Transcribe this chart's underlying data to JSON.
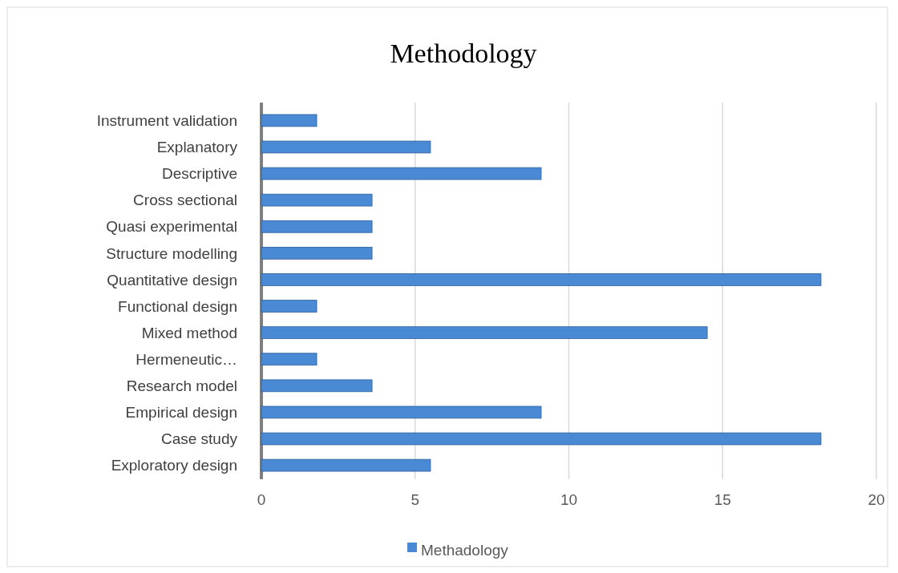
{
  "chart_data": {
    "type": "bar",
    "orientation": "horizontal",
    "title": "Methodology",
    "categories": [
      "Instrument validation",
      "Explanatory",
      "Descriptive",
      "Cross sectional",
      "Quasi experimental",
      "Structure modelling",
      "Quantitative design",
      "Functional design",
      "Mixed method",
      "Hermeneutic…",
      "Research model",
      "Empirical design",
      "Case study",
      "Exploratory design"
    ],
    "series": [
      {
        "name": "Methadology",
        "color": "#4a8ad4",
        "values": [
          1.8,
          5.5,
          9.1,
          3.6,
          3.6,
          3.6,
          18.2,
          1.8,
          14.5,
          1.8,
          3.6,
          9.1,
          18.2,
          5.5
        ]
      }
    ],
    "xlim": [
      0,
      20
    ],
    "xticks": [
      0,
      5,
      10,
      15,
      20
    ],
    "grid": "x",
    "legend": "bottom"
  }
}
